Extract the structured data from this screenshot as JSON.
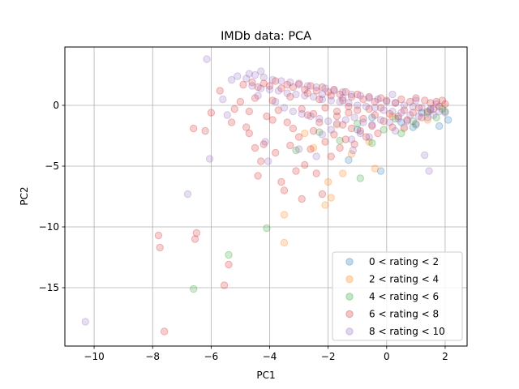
{
  "chart_data": {
    "type": "scatter",
    "title": "IMDb data: PCA",
    "xlabel": "PC1",
    "ylabel": "PC2",
    "xlim": [
      -11,
      2.75
    ],
    "ylim": [
      -19.8,
      4.8
    ],
    "xticks": [
      -10,
      -8,
      -6,
      -4,
      -2,
      0,
      2
    ],
    "xtick_labels": [
      "−10",
      "−8",
      "−6",
      "−4",
      "−2",
      "0",
      "2"
    ],
    "yticks": [
      -15,
      -10,
      -5,
      0
    ],
    "ytick_labels": [
      "−15",
      "−10",
      "−5",
      "0"
    ],
    "grid": true,
    "legend_position": "lower right",
    "marker_alpha": 0.22,
    "series": [
      {
        "name": "0 < rating < 2",
        "color": "#1f77b4",
        "points": [
          [
            -1.3,
            -4.5
          ],
          [
            -0.2,
            -5.4
          ],
          [
            1.8,
            -1.7
          ],
          [
            2.1,
            -1.2
          ],
          [
            -0.5,
            -1.0
          ],
          [
            0.5,
            -1.4
          ],
          [
            1.2,
            -0.6
          ],
          [
            -1.0,
            -2.0
          ],
          [
            0.9,
            -1.8
          ],
          [
            1.5,
            -0.3
          ]
        ]
      },
      {
        "name": "2 < rating < 4",
        "color": "#ff7f0e",
        "points": [
          [
            -3.5,
            -11.3
          ],
          [
            -3.5,
            -9.0
          ],
          [
            -2.1,
            -8.2
          ],
          [
            -2.0,
            -6.3
          ],
          [
            -1.5,
            -5.6
          ],
          [
            -0.4,
            -5.2
          ],
          [
            -2.5,
            -3.5
          ],
          [
            -1.9,
            -7.6
          ],
          [
            -1.2,
            -4.0
          ],
          [
            -0.6,
            -3.0
          ],
          [
            0.6,
            -1.9
          ],
          [
            1.4,
            -1.2
          ],
          [
            -2.8,
            -2.3
          ],
          [
            -1.7,
            -1.6
          ],
          [
            0.2,
            -0.9
          ]
        ]
      },
      {
        "name": "4 < rating < 6",
        "color": "#2ca02c",
        "points": [
          [
            -6.6,
            -15.1
          ],
          [
            -5.4,
            -12.3
          ],
          [
            -4.1,
            -10.1
          ],
          [
            -3.1,
            -3.7
          ],
          [
            -0.9,
            -6.0
          ],
          [
            -0.5,
            -3.1
          ],
          [
            0.5,
            -2.3
          ],
          [
            1.0,
            -1.6
          ],
          [
            1.7,
            -1.0
          ],
          [
            2.0,
            -0.5
          ],
          [
            -1.6,
            -2.9
          ],
          [
            -0.1,
            -2.0
          ],
          [
            0.9,
            -1.3
          ],
          [
            1.4,
            -0.6
          ],
          [
            -2.3,
            -2.2
          ],
          [
            0.3,
            -1.1
          ],
          [
            1.9,
            -0.3
          ],
          [
            -1.0,
            -1.5
          ]
        ]
      },
      {
        "name": "6 < rating < 8",
        "color": "#d62728",
        "points": [
          [
            -7.6,
            -18.6
          ],
          [
            -7.8,
            -10.7
          ],
          [
            -7.75,
            -11.7
          ],
          [
            -6.5,
            -10.5
          ],
          [
            -6.55,
            -11.0
          ],
          [
            -5.55,
            -14.8
          ],
          [
            -5.4,
            -13.1
          ],
          [
            -6.6,
            -1.9
          ],
          [
            -6.2,
            -2.1
          ],
          [
            -6.0,
            -0.6
          ],
          [
            -5.7,
            1.2
          ],
          [
            -5.3,
            -1.4
          ],
          [
            -5.2,
            -0.3
          ],
          [
            -4.8,
            -1.8
          ],
          [
            -4.7,
            -2.3
          ],
          [
            -4.5,
            -3.5
          ],
          [
            -4.4,
            -5.8
          ],
          [
            -4.3,
            -4.6
          ],
          [
            -4.2,
            -3.2
          ],
          [
            -3.9,
            -1.2
          ],
          [
            -3.8,
            -3.9
          ],
          [
            -3.7,
            -0.4
          ],
          [
            -3.6,
            -6.3
          ],
          [
            -3.5,
            -7.0
          ],
          [
            -3.3,
            -3.3
          ],
          [
            -3.2,
            -1.9
          ],
          [
            -3.1,
            -5.4
          ],
          [
            -3.0,
            -2.6
          ],
          [
            -2.9,
            -7.7
          ],
          [
            -2.8,
            -4.9
          ],
          [
            -2.7,
            -0.8
          ],
          [
            -2.6,
            -3.6
          ],
          [
            -2.5,
            -2.1
          ],
          [
            -2.4,
            -5.6
          ],
          [
            -2.3,
            -1.4
          ],
          [
            -2.2,
            -7.3
          ],
          [
            -2.1,
            -3.0
          ],
          [
            -1.9,
            -4.2
          ],
          [
            -1.8,
            -2.4
          ],
          [
            -1.7,
            -0.9
          ],
          [
            -1.6,
            -3.5
          ],
          [
            -1.5,
            -1.6
          ],
          [
            -1.4,
            -2.8
          ],
          [
            -1.3,
            -0.6
          ],
          [
            -1.2,
            -1.9
          ],
          [
            -1.1,
            -3.2
          ],
          [
            -1.0,
            -0.4
          ],
          [
            -0.9,
            -2.1
          ],
          [
            -0.8,
            -1.1
          ],
          [
            -0.7,
            -2.6
          ],
          [
            -0.6,
            -0.3
          ],
          [
            -0.5,
            -1.7
          ],
          [
            -0.4,
            -0.8
          ],
          [
            -0.3,
            -2.3
          ],
          [
            -0.2,
            -0.2
          ],
          [
            -0.1,
            -1.3
          ],
          [
            0.0,
            0.4
          ],
          [
            0.1,
            -0.7
          ],
          [
            0.2,
            -1.8
          ],
          [
            0.3,
            0.2
          ],
          [
            0.4,
            -0.9
          ],
          [
            0.5,
            0.5
          ],
          [
            0.6,
            -0.4
          ],
          [
            0.7,
            -1.2
          ],
          [
            0.8,
            0.3
          ],
          [
            0.9,
            -0.6
          ],
          [
            1.0,
            0.6
          ],
          [
            1.1,
            -0.2
          ],
          [
            1.2,
            -1.0
          ],
          [
            1.3,
            0.4
          ],
          [
            1.4,
            -0.5
          ],
          [
            1.5,
            0.2
          ],
          [
            1.6,
            -0.3
          ],
          [
            1.7,
            0.3
          ],
          [
            1.8,
            -0.1
          ],
          [
            1.9,
            0.4
          ],
          [
            2.0,
            0.1
          ],
          [
            -4.9,
            1.7
          ],
          [
            -4.6,
            1.9
          ],
          [
            -4.4,
            1.5
          ],
          [
            -4.2,
            1.8
          ],
          [
            -4.0,
            1.6
          ],
          [
            -3.8,
            2.0
          ],
          [
            -3.6,
            1.4
          ],
          [
            -3.4,
            1.7
          ],
          [
            -3.2,
            1.5
          ],
          [
            -3.0,
            1.8
          ],
          [
            -2.8,
            1.3
          ],
          [
            -2.6,
            1.6
          ],
          [
            -2.4,
            1.2
          ],
          [
            -2.2,
            1.5
          ],
          [
            -2.0,
            1.1
          ],
          [
            -1.8,
            1.3
          ],
          [
            -1.6,
            0.9
          ],
          [
            -1.4,
            1.1
          ],
          [
            -1.2,
            0.7
          ],
          [
            -1.0,
            0.9
          ],
          [
            -0.8,
            0.5
          ],
          [
            -0.6,
            0.7
          ],
          [
            -0.4,
            0.3
          ],
          [
            -0.2,
            0.6
          ],
          [
            -5.0,
            0.3
          ],
          [
            -4.7,
            -0.5
          ],
          [
            -4.5,
            0.6
          ],
          [
            -4.1,
            -0.9
          ],
          [
            -3.9,
            0.4
          ],
          [
            -3.4,
            -1.4
          ],
          [
            -3.3,
            0.7
          ],
          [
            -2.9,
            -0.3
          ],
          [
            -2.7,
            1.0
          ],
          [
            -2.5,
            -0.7
          ],
          [
            -2.3,
            0.5
          ],
          [
            -2.1,
            -0.2
          ],
          [
            -1.9,
            0.8
          ],
          [
            -1.7,
            -0.5
          ],
          [
            -1.5,
            0.4
          ],
          [
            -1.3,
            -0.1
          ]
        ]
      },
      {
        "name": "8 < rating < 10",
        "color": "#9467bd",
        "points": [
          [
            -10.3,
            -17.8
          ],
          [
            -6.8,
            -7.3
          ],
          [
            -6.05,
            -4.4
          ],
          [
            -6.15,
            3.8
          ],
          [
            -5.6,
            0.5
          ],
          [
            -5.45,
            -0.8
          ],
          [
            -5.3,
            2.1
          ],
          [
            -5.1,
            2.4
          ],
          [
            -4.7,
            2.6
          ],
          [
            -4.3,
            2.8
          ],
          [
            -4.15,
            -3.0
          ],
          [
            -4.05,
            -4.6
          ],
          [
            -3.0,
            -3.6
          ],
          [
            -2.4,
            -4.2
          ],
          [
            -1.2,
            -2.8
          ],
          [
            -1.15,
            -3.7
          ],
          [
            0.6,
            -1.8
          ],
          [
            1.3,
            -4.1
          ],
          [
            1.45,
            -5.4
          ],
          [
            -4.8,
            2.2
          ],
          [
            -4.5,
            2.5
          ],
          [
            -4.2,
            2.3
          ],
          [
            -3.9,
            2.1
          ],
          [
            -3.6,
            2.0
          ],
          [
            -3.3,
            1.9
          ],
          [
            -3.0,
            1.7
          ],
          [
            -2.7,
            1.6
          ],
          [
            -2.4,
            1.5
          ],
          [
            -2.1,
            1.4
          ],
          [
            -1.8,
            1.2
          ],
          [
            -1.5,
            1.1
          ],
          [
            -1.2,
            0.9
          ],
          [
            -0.9,
            0.8
          ],
          [
            -0.6,
            0.6
          ],
          [
            -0.3,
            0.5
          ],
          [
            0.0,
            0.3
          ],
          [
            0.3,
            0.2
          ],
          [
            0.6,
            0.0
          ],
          [
            0.9,
            -0.1
          ],
          [
            1.2,
            -0.2
          ],
          [
            1.5,
            -0.4
          ],
          [
            1.8,
            -0.5
          ],
          [
            -4.6,
            1.6
          ],
          [
            -4.3,
            1.4
          ],
          [
            -4.0,
            1.3
          ],
          [
            -3.7,
            1.2
          ],
          [
            -3.4,
            1.0
          ],
          [
            -3.1,
            0.9
          ],
          [
            -2.8,
            0.8
          ],
          [
            -2.5,
            0.7
          ],
          [
            -2.2,
            0.5
          ],
          [
            -1.9,
            0.4
          ],
          [
            -1.6,
            0.3
          ],
          [
            -1.3,
            0.2
          ],
          [
            -1.0,
            0.0
          ],
          [
            -0.7,
            -0.1
          ],
          [
            -0.4,
            -0.2
          ],
          [
            -0.1,
            -0.4
          ],
          [
            0.2,
            -0.5
          ],
          [
            0.5,
            -0.6
          ],
          [
            0.8,
            -0.8
          ],
          [
            1.1,
            -0.9
          ],
          [
            1.4,
            -1.0
          ],
          [
            -3.5,
            -0.2
          ],
          [
            -3.2,
            -0.5
          ],
          [
            -2.9,
            -0.7
          ],
          [
            -2.6,
            -0.9
          ],
          [
            -2.3,
            -1.1
          ],
          [
            -2.0,
            -1.3
          ],
          [
            -1.7,
            -1.5
          ],
          [
            -1.4,
            -1.2
          ],
          [
            -1.1,
            -1.0
          ],
          [
            -0.8,
            -1.4
          ],
          [
            -0.5,
            -1.6
          ],
          [
            -0.2,
            -1.2
          ],
          [
            0.1,
            -1.4
          ],
          [
            0.4,
            -1.1
          ],
          [
            0.7,
            -1.3
          ],
          [
            1.0,
            -1.5
          ],
          [
            1.6,
            -0.8
          ],
          [
            2.0,
            -0.6
          ],
          [
            -2.2,
            -2.4
          ],
          [
            -1.9,
            -2.0
          ],
          [
            -0.9,
            -2.3
          ],
          [
            -0.6,
            -2.6
          ],
          [
            0.3,
            -2.1
          ],
          [
            -4.4,
            0.8
          ],
          [
            -3.8,
            0.3
          ],
          [
            -2.2,
            0.9
          ],
          [
            -1.5,
            0.6
          ],
          [
            0.2,
            0.9
          ],
          [
            1.0,
            0.4
          ],
          [
            1.7,
            0.1
          ]
        ]
      }
    ]
  }
}
